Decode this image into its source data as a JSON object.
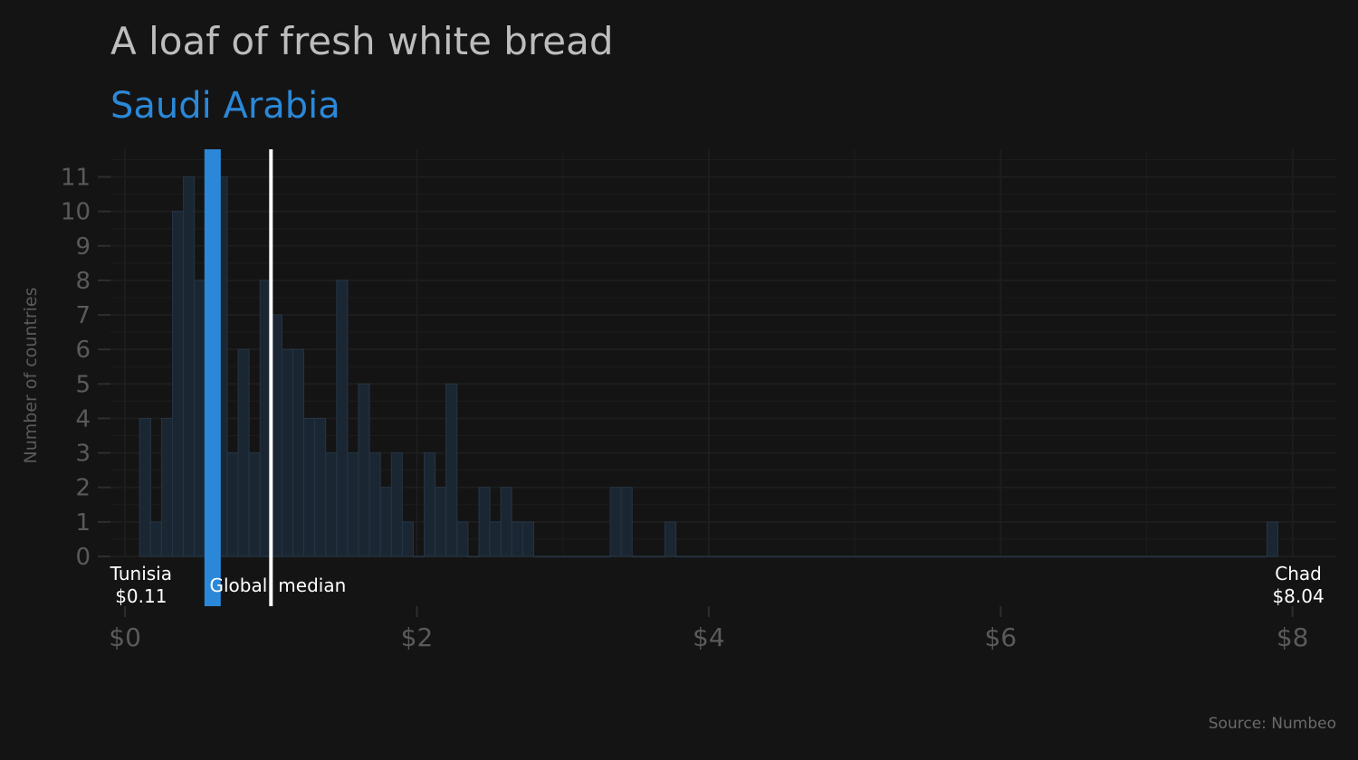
{
  "chart_data": {
    "type": "bar",
    "title": "A loaf of fresh white bread",
    "subtitle": "Saudi Arabia",
    "ylabel": "Number of countries",
    "source": "Source: Numbeo",
    "bin_width": 0.075,
    "bin_start": 0.1,
    "xlim": [
      -0.1,
      8.3
    ],
    "ylim": [
      0,
      11.8
    ],
    "x_ticks": [
      0,
      2,
      4,
      6,
      8
    ],
    "x_tick_labels": [
      "$0",
      "$2",
      "$4",
      "$6",
      "$8"
    ],
    "y_ticks": [
      0,
      1,
      2,
      3,
      4,
      5,
      6,
      7,
      8,
      9,
      10,
      11
    ],
    "y_tick_labels": [
      "0",
      "1",
      "2",
      "3",
      "4",
      "5",
      "6",
      "7",
      "8",
      "9",
      "10",
      "11"
    ],
    "values": [
      4,
      1,
      4,
      10,
      11,
      8,
      8,
      11,
      3,
      6,
      3,
      8,
      7,
      6,
      6,
      4,
      4,
      3,
      8,
      3,
      5,
      3,
      2,
      3,
      1,
      0,
      3,
      2,
      5,
      1,
      0,
      2,
      1,
      2,
      1,
      1,
      0,
      0,
      0,
      0,
      0,
      0,
      0,
      2,
      2,
      0,
      0,
      0,
      1,
      0,
      0,
      0,
      0,
      0,
      0,
      0,
      0,
      0,
      0,
      0,
      0,
      0,
      0,
      0,
      0,
      0,
      0,
      0,
      0,
      0,
      0,
      0,
      0,
      0,
      0,
      0,
      0,
      0,
      0,
      0,
      0,
      0,
      0,
      0,
      0,
      0,
      0,
      0,
      0,
      0,
      0,
      0,
      0,
      0,
      0,
      0,
      0,
      0,
      0,
      0,
      0,
      0,
      0,
      1
    ],
    "highlight": {
      "name": "Saudi Arabia",
      "value": 0.6,
      "color": "#2b88d8"
    },
    "median": {
      "value": 1.0,
      "label": "median",
      "left_label": "Global",
      "color": "#ffffff"
    },
    "annotations": [
      {
        "name": "Tunisia",
        "value_label": "$0.11",
        "x": 0.11
      },
      {
        "name": "Chad",
        "value_label": "$8.04",
        "x": 8.04
      }
    ],
    "colors": {
      "bar_fill": "#1b2633",
      "bar_stroke": "#253545",
      "grid": "#1d1d1d",
      "tick": "#2e2e2e"
    }
  }
}
